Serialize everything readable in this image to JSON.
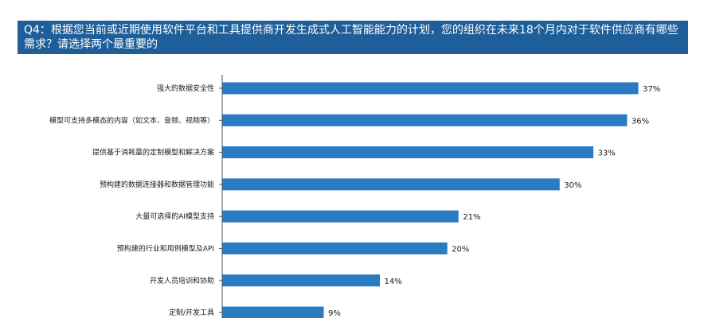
{
  "chart_data": {
    "type": "bar",
    "orientation": "horizontal",
    "title": "Q4：根据您当前或近期使用软件平台和工具提供商开发生成式人工智能能力的计划，您的组织在未来18个月内对于软件供应商有哪些需求？请选择两个最重要的",
    "categories": [
      "强大的数据安全性",
      "模型可支持多模态的内容（如文本、音频、视频等）",
      "提供基于消耗量的定制模型和解决方案",
      "预构建的数据连接器和数据管理功能",
      "大量可选择的AI模型支持",
      "预构建的行业和用例模型及API",
      "开发人员培训和协助",
      "定制/开发工具"
    ],
    "values": [
      37,
      36,
      33,
      30,
      21,
      20,
      14,
      9
    ],
    "value_labels": [
      "37%",
      "36%",
      "33%",
      "30%",
      "21%",
      "20%",
      "14%",
      "9%"
    ],
    "unit": "%",
    "xlim": [
      0,
      37
    ],
    "grid": false,
    "legend": "none",
    "bar_color": "#2a7bc0",
    "title_bg_color": "#1f5f99",
    "title_text_color": "#ffffff",
    "axis_color": "#555555"
  }
}
